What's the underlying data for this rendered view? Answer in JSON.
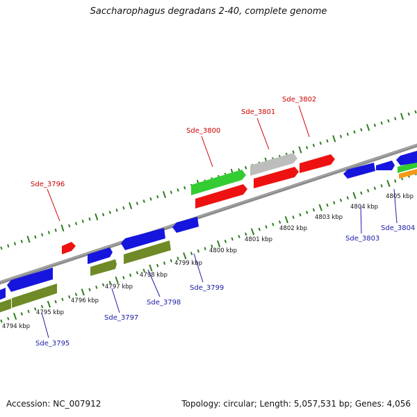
{
  "title": "Saccharophagus degradans 2-40, complete genome",
  "footer": {
    "accession": "Accession: NC_007912",
    "topology": "Topology: circular; Length: 5,057,531 bp; Genes: 4,056"
  },
  "colors": {
    "backbone": "#8c8c8c",
    "tick": "#2e7d1e",
    "label_red": "#cc0000",
    "label_blue": "#1a1aa8",
    "gene_blue": "#1515dd",
    "gene_red": "#ee1111",
    "gene_green": "#33cc33",
    "gene_olive": "#6f8a26",
    "gene_gray": "#bdbdbd",
    "gene_orange": "#f29a18"
  },
  "kbp_labels": [
    "4794 kbp",
    "4795 kbp",
    "4796 kbp",
    "4797 kbp",
    "4798 kbp",
    "4799 kbp",
    "4800 kbp",
    "4801 kbp",
    "4802 kbp",
    "4803 kbp",
    "4804 kbp",
    "4805 kbp"
  ],
  "gene_labels": [
    {
      "text": "Sde_3796",
      "color": "red"
    },
    {
      "text": "Sde_3800",
      "color": "red"
    },
    {
      "text": "Sde_3801",
      "color": "red"
    },
    {
      "text": "Sde_3802",
      "color": "red"
    },
    {
      "text": "Sde_3795",
      "color": "blue"
    },
    {
      "text": "Sde_3797",
      "color": "blue"
    },
    {
      "text": "Sde_3798",
      "color": "blue"
    },
    {
      "text": "Sde_3799",
      "color": "blue"
    },
    {
      "text": "Sde_3803",
      "color": "blue"
    },
    {
      "text": "Sde_3804",
      "color": "blue"
    }
  ]
}
